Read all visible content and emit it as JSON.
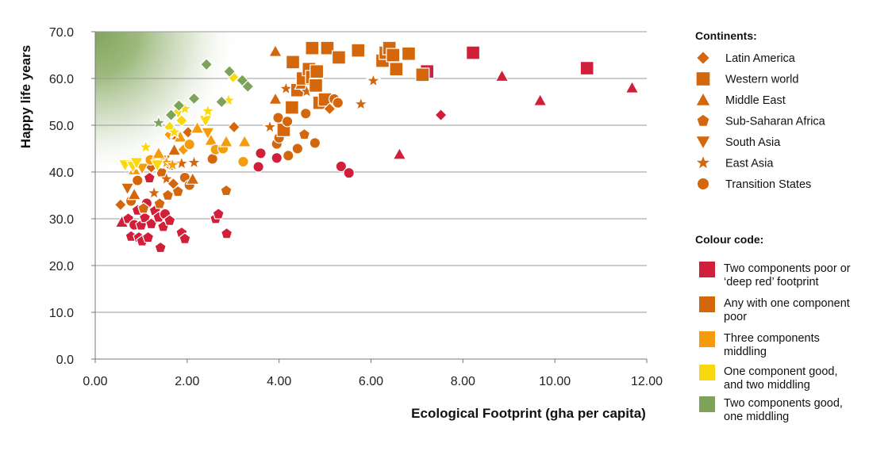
{
  "chart_data": {
    "type": "scatter",
    "title": "",
    "xlabel": "Ecological Footprint (gha per capita)",
    "ylabel": "Happy life years",
    "xlim": [
      0,
      12
    ],
    "ylim": [
      0,
      70
    ],
    "x_ticks": [
      "0.00",
      "2.00",
      "4.00",
      "6.00",
      "8.00",
      "10.00",
      "12.00"
    ],
    "y_ticks": [
      "0.0",
      "10.0",
      "20.0",
      "30.0",
      "40.0",
      "50.0",
      "60.0",
      "70.0"
    ],
    "grid": "horizontal",
    "legend_position": "right",
    "continents_title": "Continents:",
    "continents": [
      {
        "key": "LA",
        "label": "Latin America",
        "shape": "diamond"
      },
      {
        "key": "WW",
        "label": "Western world",
        "shape": "square"
      },
      {
        "key": "ME",
        "label": "Middle East",
        "shape": "triangle"
      },
      {
        "key": "SSA",
        "label": "Sub-Saharan Africa",
        "shape": "pentagon"
      },
      {
        "key": "SA",
        "label": "South Asia",
        "shape": "triangle-down"
      },
      {
        "key": "EA",
        "label": "East Asia",
        "shape": "star"
      },
      {
        "key": "TS",
        "label": "Transition States",
        "shape": "circle"
      }
    ],
    "colour_title": "Colour code:",
    "colour_codes": [
      {
        "key": "R",
        "color": "#d11f3a",
        "lines": [
          "Two components poor or",
          "‘deep red’ footprint"
        ]
      },
      {
        "key": "O",
        "color": "#d4670b",
        "lines": [
          "Any with one component",
          "poor"
        ]
      },
      {
        "key": "Y",
        "color": "#f59c0d",
        "lines": [
          "Three components",
          "middling"
        ]
      },
      {
        "key": "L",
        "color": "#f8d90f",
        "lines": [
          "One component good,",
          "and two middling"
        ]
      },
      {
        "key": "G",
        "color": "#7ea25a",
        "lines": [
          "Two components good,",
          "one middling"
        ]
      }
    ],
    "points": [
      {
        "x": 0.58,
        "y": 29.3,
        "s": "ME",
        "c": "R"
      },
      {
        "x": 0.72,
        "y": 30.0,
        "s": "SSA",
        "c": "R"
      },
      {
        "x": 0.78,
        "y": 26.2,
        "s": "SSA",
        "c": "R"
      },
      {
        "x": 0.85,
        "y": 28.7,
        "s": "TS",
        "c": "R"
      },
      {
        "x": 0.92,
        "y": 31.8,
        "s": "SSA",
        "c": "R"
      },
      {
        "x": 0.95,
        "y": 26.0,
        "s": "SSA",
        "c": "R"
      },
      {
        "x": 1.0,
        "y": 28.6,
        "s": "SSA",
        "c": "R"
      },
      {
        "x": 1.02,
        "y": 25.2,
        "s": "SSA",
        "c": "R"
      },
      {
        "x": 1.08,
        "y": 30.2,
        "s": "SSA",
        "c": "R"
      },
      {
        "x": 1.12,
        "y": 33.3,
        "s": "TS",
        "c": "R"
      },
      {
        "x": 1.15,
        "y": 26.0,
        "s": "SSA",
        "c": "R"
      },
      {
        "x": 1.18,
        "y": 38.7,
        "s": "SSA",
        "c": "R"
      },
      {
        "x": 1.22,
        "y": 28.9,
        "s": "SSA",
        "c": "R"
      },
      {
        "x": 1.3,
        "y": 31.7,
        "s": "SSA",
        "c": "R"
      },
      {
        "x": 1.38,
        "y": 30.3,
        "s": "SSA",
        "c": "R"
      },
      {
        "x": 1.42,
        "y": 23.8,
        "s": "SSA",
        "c": "R"
      },
      {
        "x": 1.48,
        "y": 28.3,
        "s": "SSA",
        "c": "R"
      },
      {
        "x": 1.52,
        "y": 31.0,
        "s": "TS",
        "c": "R"
      },
      {
        "x": 1.62,
        "y": 29.6,
        "s": "SSA",
        "c": "R"
      },
      {
        "x": 1.88,
        "y": 27.0,
        "s": "SSA",
        "c": "R"
      },
      {
        "x": 1.95,
        "y": 25.7,
        "s": "SSA",
        "c": "R"
      },
      {
        "x": 2.62,
        "y": 30.0,
        "s": "SSA",
        "c": "R"
      },
      {
        "x": 2.68,
        "y": 31.0,
        "s": "SSA",
        "c": "R"
      },
      {
        "x": 2.86,
        "y": 26.8,
        "s": "SSA",
        "c": "R"
      },
      {
        "x": 3.55,
        "y": 41.1,
        "s": "TS",
        "c": "R"
      },
      {
        "x": 3.6,
        "y": 44.0,
        "s": "TS",
        "c": "R"
      },
      {
        "x": 3.95,
        "y": 43.0,
        "s": "TS",
        "c": "R"
      },
      {
        "x": 5.35,
        "y": 41.2,
        "s": "TS",
        "c": "R"
      },
      {
        "x": 5.52,
        "y": 39.8,
        "s": "TS",
        "c": "R"
      },
      {
        "x": 6.62,
        "y": 43.8,
        "s": "ME",
        "c": "R"
      },
      {
        "x": 7.22,
        "y": 61.5,
        "s": "WW",
        "c": "R"
      },
      {
        "x": 7.52,
        "y": 52.2,
        "s": "LA",
        "c": "R"
      },
      {
        "x": 8.22,
        "y": 65.5,
        "s": "WW",
        "c": "R"
      },
      {
        "x": 8.85,
        "y": 60.5,
        "s": "ME",
        "c": "R"
      },
      {
        "x": 9.68,
        "y": 55.3,
        "s": "ME",
        "c": "R"
      },
      {
        "x": 10.7,
        "y": 62.2,
        "s": "WW",
        "c": "R"
      },
      {
        "x": 11.68,
        "y": 58.0,
        "s": "ME",
        "c": "R"
      },
      {
        "x": 0.55,
        "y": 33.0,
        "s": "LA",
        "c": "O"
      },
      {
        "x": 0.7,
        "y": 36.5,
        "s": "SA",
        "c": "O"
      },
      {
        "x": 0.78,
        "y": 33.8,
        "s": "TS",
        "c": "O"
      },
      {
        "x": 0.85,
        "y": 35.2,
        "s": "ME",
        "c": "O"
      },
      {
        "x": 0.92,
        "y": 38.2,
        "s": "TS",
        "c": "O"
      },
      {
        "x": 1.05,
        "y": 32.2,
        "s": "SSA",
        "c": "O"
      },
      {
        "x": 1.22,
        "y": 41.0,
        "s": "LA",
        "c": "O"
      },
      {
        "x": 1.28,
        "y": 35.5,
        "s": "EA",
        "c": "O"
      },
      {
        "x": 1.4,
        "y": 33.2,
        "s": "SSA",
        "c": "O"
      },
      {
        "x": 1.45,
        "y": 39.8,
        "s": "TS",
        "c": "O"
      },
      {
        "x": 1.5,
        "y": 42.5,
        "s": "SA",
        "c": "O"
      },
      {
        "x": 1.55,
        "y": 38.5,
        "s": "EA",
        "c": "O"
      },
      {
        "x": 1.58,
        "y": 35.0,
        "s": "SSA",
        "c": "O"
      },
      {
        "x": 1.65,
        "y": 41.5,
        "s": "TS",
        "c": "O"
      },
      {
        "x": 1.7,
        "y": 37.5,
        "s": "LA",
        "c": "O"
      },
      {
        "x": 1.72,
        "y": 44.7,
        "s": "ME",
        "c": "O"
      },
      {
        "x": 1.78,
        "y": 48.0,
        "s": "ME",
        "c": "O"
      },
      {
        "x": 1.8,
        "y": 35.8,
        "s": "SSA",
        "c": "O"
      },
      {
        "x": 1.88,
        "y": 41.8,
        "s": "EA",
        "c": "O"
      },
      {
        "x": 1.95,
        "y": 38.8,
        "s": "TS",
        "c": "O"
      },
      {
        "x": 2.02,
        "y": 48.5,
        "s": "LA",
        "c": "O"
      },
      {
        "x": 2.05,
        "y": 37.2,
        "s": "TS",
        "c": "O"
      },
      {
        "x": 2.12,
        "y": 38.5,
        "s": "ME",
        "c": "O"
      },
      {
        "x": 2.15,
        "y": 42.0,
        "s": "EA",
        "c": "O"
      },
      {
        "x": 2.55,
        "y": 42.8,
        "s": "TS",
        "c": "O"
      },
      {
        "x": 2.85,
        "y": 36.0,
        "s": "SSA",
        "c": "O"
      },
      {
        "x": 3.02,
        "y": 49.6,
        "s": "LA",
        "c": "O"
      },
      {
        "x": 3.8,
        "y": 49.6,
        "s": "EA",
        "c": "O"
      },
      {
        "x": 3.92,
        "y": 55.6,
        "s": "ME",
        "c": "O"
      },
      {
        "x": 3.92,
        "y": 65.8,
        "s": "ME",
        "c": "O"
      },
      {
        "x": 3.95,
        "y": 46.0,
        "s": "TS",
        "c": "O"
      },
      {
        "x": 3.98,
        "y": 51.6,
        "s": "TS",
        "c": "O"
      },
      {
        "x": 4.0,
        "y": 47.3,
        "s": "TS",
        "c": "O"
      },
      {
        "x": 4.1,
        "y": 49.0,
        "s": "WW",
        "c": "O"
      },
      {
        "x": 4.18,
        "y": 50.8,
        "s": "TS",
        "c": "O"
      },
      {
        "x": 4.2,
        "y": 43.5,
        "s": "TS",
        "c": "O"
      },
      {
        "x": 4.15,
        "y": 57.8,
        "s": "EA",
        "c": "O"
      },
      {
        "x": 4.28,
        "y": 53.8,
        "s": "WW",
        "c": "O"
      },
      {
        "x": 4.3,
        "y": 63.5,
        "s": "WW",
        "c": "O"
      },
      {
        "x": 4.4,
        "y": 45.0,
        "s": "TS",
        "c": "O"
      },
      {
        "x": 4.4,
        "y": 57.5,
        "s": "WW",
        "c": "O"
      },
      {
        "x": 4.48,
        "y": 58.8,
        "s": "ME",
        "c": "O"
      },
      {
        "x": 4.52,
        "y": 60.0,
        "s": "WW",
        "c": "O"
      },
      {
        "x": 4.55,
        "y": 48.0,
        "s": "SSA",
        "c": "O"
      },
      {
        "x": 4.58,
        "y": 52.5,
        "s": "TS",
        "c": "O"
      },
      {
        "x": 4.6,
        "y": 57.2,
        "s": "EA",
        "c": "O"
      },
      {
        "x": 4.65,
        "y": 62.0,
        "s": "WW",
        "c": "O"
      },
      {
        "x": 4.72,
        "y": 66.5,
        "s": "WW",
        "c": "O"
      },
      {
        "x": 4.72,
        "y": 60.3,
        "s": "WW",
        "c": "O"
      },
      {
        "x": 4.78,
        "y": 46.2,
        "s": "TS",
        "c": "O"
      },
      {
        "x": 4.8,
        "y": 58.5,
        "s": "WW",
        "c": "O"
      },
      {
        "x": 4.82,
        "y": 61.5,
        "s": "WW",
        "c": "O"
      },
      {
        "x": 4.88,
        "y": 54.8,
        "s": "WW",
        "c": "O"
      },
      {
        "x": 5.0,
        "y": 55.5,
        "s": "WW",
        "c": "O"
      },
      {
        "x": 5.05,
        "y": 66.5,
        "s": "WW",
        "c": "O"
      },
      {
        "x": 5.1,
        "y": 53.5,
        "s": "LA",
        "c": "O"
      },
      {
        "x": 5.2,
        "y": 55.6,
        "s": "TS",
        "c": "O"
      },
      {
        "x": 5.28,
        "y": 54.8,
        "s": "TS",
        "c": "O"
      },
      {
        "x": 5.3,
        "y": 64.5,
        "s": "WW",
        "c": "O"
      },
      {
        "x": 5.72,
        "y": 66.0,
        "s": "WW",
        "c": "O"
      },
      {
        "x": 5.78,
        "y": 54.5,
        "s": "EA",
        "c": "O"
      },
      {
        "x": 6.05,
        "y": 59.5,
        "s": "EA",
        "c": "O"
      },
      {
        "x": 6.25,
        "y": 63.8,
        "s": "WW",
        "c": "O"
      },
      {
        "x": 6.32,
        "y": 65.5,
        "s": "WW",
        "c": "O"
      },
      {
        "x": 6.4,
        "y": 66.5,
        "s": "WW",
        "c": "O"
      },
      {
        "x": 6.48,
        "y": 65.0,
        "s": "WW",
        "c": "O"
      },
      {
        "x": 6.55,
        "y": 62.0,
        "s": "WW",
        "c": "O"
      },
      {
        "x": 6.82,
        "y": 65.3,
        "s": "WW",
        "c": "O"
      },
      {
        "x": 7.12,
        "y": 60.8,
        "s": "WW",
        "c": "O"
      },
      {
        "x": 0.85,
        "y": 40.5,
        "s": "ME",
        "c": "Y"
      },
      {
        "x": 1.02,
        "y": 40.8,
        "s": "SA",
        "c": "Y"
      },
      {
        "x": 1.2,
        "y": 42.6,
        "s": "TS",
        "c": "Y"
      },
      {
        "x": 1.38,
        "y": 44.0,
        "s": "ME",
        "c": "Y"
      },
      {
        "x": 1.55,
        "y": 42.0,
        "s": "EA",
        "c": "Y"
      },
      {
        "x": 1.62,
        "y": 48.0,
        "s": "LA",
        "c": "Y"
      },
      {
        "x": 1.68,
        "y": 41.5,
        "s": "EA",
        "c": "Y"
      },
      {
        "x": 1.85,
        "y": 47.5,
        "s": "ME",
        "c": "Y"
      },
      {
        "x": 1.92,
        "y": 44.8,
        "s": "LA",
        "c": "Y"
      },
      {
        "x": 2.05,
        "y": 45.9,
        "s": "TS",
        "c": "Y"
      },
      {
        "x": 2.22,
        "y": 49.4,
        "s": "ME",
        "c": "Y"
      },
      {
        "x": 2.45,
        "y": 48.4,
        "s": "SA",
        "c": "Y"
      },
      {
        "x": 2.52,
        "y": 46.8,
        "s": "ME",
        "c": "Y"
      },
      {
        "x": 2.62,
        "y": 44.8,
        "s": "TS",
        "c": "Y"
      },
      {
        "x": 2.78,
        "y": 45.0,
        "s": "TS",
        "c": "Y"
      },
      {
        "x": 2.85,
        "y": 46.5,
        "s": "ME",
        "c": "Y"
      },
      {
        "x": 3.22,
        "y": 42.2,
        "s": "TS",
        "c": "Y"
      },
      {
        "x": 3.25,
        "y": 46.5,
        "s": "ME",
        "c": "Y"
      },
      {
        "x": 0.65,
        "y": 41.5,
        "s": "SA",
        "c": "L"
      },
      {
        "x": 0.82,
        "y": 41.2,
        "s": "SA",
        "c": "L"
      },
      {
        "x": 0.9,
        "y": 42.0,
        "s": "SA",
        "c": "L"
      },
      {
        "x": 1.1,
        "y": 45.3,
        "s": "EA",
        "c": "L"
      },
      {
        "x": 1.35,
        "y": 41.5,
        "s": "SA",
        "c": "L"
      },
      {
        "x": 1.62,
        "y": 49.6,
        "s": "LA",
        "c": "L"
      },
      {
        "x": 1.72,
        "y": 48.5,
        "s": "EA",
        "c": "L"
      },
      {
        "x": 1.8,
        "y": 52.8,
        "s": "LA",
        "c": "L"
      },
      {
        "x": 1.88,
        "y": 51.0,
        "s": "LA",
        "c": "L"
      },
      {
        "x": 1.95,
        "y": 53.5,
        "s": "EA",
        "c": "L"
      },
      {
        "x": 2.4,
        "y": 51.0,
        "s": "SA",
        "c": "L"
      },
      {
        "x": 2.45,
        "y": 53.0,
        "s": "EA",
        "c": "L"
      },
      {
        "x": 2.9,
        "y": 55.3,
        "s": "EA",
        "c": "L"
      },
      {
        "x": 3.0,
        "y": 60.3,
        "s": "LA",
        "c": "L"
      },
      {
        "x": 1.38,
        "y": 50.5,
        "s": "EA",
        "c": "G"
      },
      {
        "x": 1.65,
        "y": 52.2,
        "s": "LA",
        "c": "G"
      },
      {
        "x": 1.82,
        "y": 54.2,
        "s": "LA",
        "c": "G"
      },
      {
        "x": 2.15,
        "y": 55.7,
        "s": "LA",
        "c": "G"
      },
      {
        "x": 2.42,
        "y": 63.0,
        "s": "LA",
        "c": "G"
      },
      {
        "x": 2.75,
        "y": 55.0,
        "s": "LA",
        "c": "G"
      },
      {
        "x": 2.92,
        "y": 61.5,
        "s": "LA",
        "c": "G"
      },
      {
        "x": 3.2,
        "y": 59.6,
        "s": "LA",
        "c": "G"
      },
      {
        "x": 3.32,
        "y": 58.3,
        "s": "LA",
        "c": "G"
      }
    ]
  }
}
